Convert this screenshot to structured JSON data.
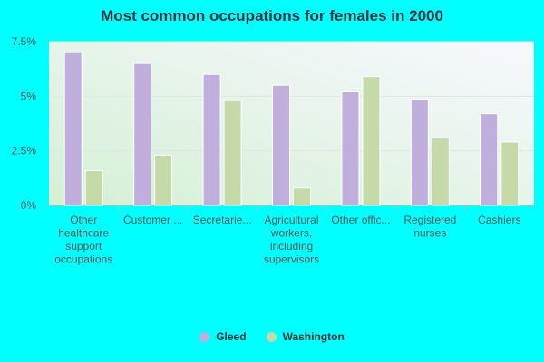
{
  "chart_data": {
    "type": "bar",
    "title": "Most common occupations for females in 2000",
    "categories": [
      [
        "Other",
        "healthcare",
        "support",
        "occupations"
      ],
      [
        "Customer ..."
      ],
      [
        "Secretarie..."
      ],
      [
        "Agricultural",
        "workers,",
        "including",
        "supervisors"
      ],
      [
        "Other offic..."
      ],
      [
        "Registered",
        "nurses"
      ],
      [
        "Cashiers"
      ]
    ],
    "series": [
      {
        "name": "Gleed",
        "color": "#c0aedc",
        "values": [
          7.0,
          6.5,
          6.0,
          5.5,
          5.2,
          4.85,
          4.2
        ]
      },
      {
        "name": "Washington",
        "color": "#c5daa8",
        "values": [
          1.6,
          2.3,
          4.8,
          0.8,
          5.9,
          3.1,
          2.9
        ]
      }
    ],
    "yticks": [
      "0%",
      "2.5%",
      "5%",
      "7.5%"
    ],
    "ytick_values": [
      0,
      2.5,
      5,
      7.5
    ],
    "ylim": [
      0,
      7.5
    ],
    "legend_position": "bottom"
  }
}
